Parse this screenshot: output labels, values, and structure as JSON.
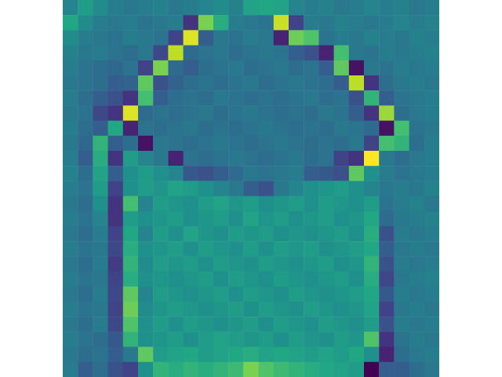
{
  "chart_data": {
    "type": "heatmap",
    "tick_labels": false,
    "cells": [
      [
        0.45,
        0.55,
        0.48,
        0.42,
        0.4,
        0.42,
        0.44,
        0.4,
        0.42,
        0.45,
        0.48,
        0.44,
        0.58,
        0.6,
        0.58,
        0.45,
        0.42,
        0.44,
        0.4,
        0.42,
        0.45,
        0.42,
        0.44,
        0.4,
        0.42
      ],
      [
        0.6,
        0.48,
        0.42,
        0.4,
        0.42,
        0.38,
        0.4,
        0.42,
        0.15,
        0.8,
        0.62,
        0.42,
        0.4,
        0.38,
        0.92,
        0.2,
        0.42,
        0.4,
        0.44,
        0.42,
        0.4,
        0.42,
        0.45,
        0.42,
        0.44
      ],
      [
        0.48,
        0.42,
        0.4,
        0.38,
        0.42,
        0.4,
        0.38,
        0.2,
        0.95,
        0.3,
        0.4,
        0.38,
        0.42,
        0.4,
        0.1,
        0.78,
        0.72,
        0.38,
        0.42,
        0.4,
        0.44,
        0.42,
        0.4,
        0.44,
        0.42
      ],
      [
        0.44,
        0.4,
        0.42,
        0.38,
        0.36,
        0.4,
        0.22,
        0.9,
        0.35,
        0.38,
        0.4,
        0.36,
        0.38,
        0.4,
        0.38,
        0.3,
        0.25,
        0.1,
        0.7,
        0.4,
        0.38,
        0.42,
        0.4,
        0.42,
        0.44
      ],
      [
        0.42,
        0.38,
        0.36,
        0.34,
        0.38,
        0.2,
        0.8,
        0.35,
        0.3,
        0.36,
        0.38,
        0.4,
        0.36,
        0.38,
        0.4,
        0.36,
        0.38,
        0.3,
        0.75,
        0.05,
        0.4,
        0.38,
        0.42,
        0.4,
        0.42
      ],
      [
        0.4,
        0.38,
        0.36,
        0.3,
        0.32,
        0.75,
        0.25,
        0.32,
        0.36,
        0.38,
        0.36,
        0.38,
        0.4,
        0.36,
        0.38,
        0.4,
        0.38,
        0.36,
        0.3,
        0.9,
        0.15,
        0.36,
        0.4,
        0.42,
        0.4
      ],
      [
        0.42,
        0.36,
        0.3,
        0.25,
        0.15,
        0.7,
        0.3,
        0.36,
        0.38,
        0.36,
        0.4,
        0.38,
        0.36,
        0.38,
        0.36,
        0.38,
        0.4,
        0.36,
        0.38,
        0.25,
        0.65,
        0.3,
        0.38,
        0.4,
        0.42
      ],
      [
        0.4,
        0.38,
        0.22,
        0.15,
        0.95,
        0.35,
        0.38,
        0.36,
        0.38,
        0.4,
        0.36,
        0.38,
        0.4,
        0.38,
        0.36,
        0.38,
        0.36,
        0.4,
        0.38,
        0.3,
        0.15,
        0.85,
        0.36,
        0.4,
        0.42
      ],
      [
        0.42,
        0.36,
        0.3,
        0.6,
        0.1,
        0.38,
        0.36,
        0.38,
        0.4,
        0.36,
        0.38,
        0.36,
        0.38,
        0.4,
        0.38,
        0.36,
        0.38,
        0.36,
        0.4,
        0.38,
        0.35,
        0.05,
        0.7,
        0.38,
        0.4
      ],
      [
        0.4,
        0.34,
        0.65,
        0.3,
        0.36,
        0.05,
        0.4,
        0.38,
        0.36,
        0.38,
        0.4,
        0.38,
        0.36,
        0.38,
        0.4,
        0.38,
        0.36,
        0.38,
        0.36,
        0.4,
        0.2,
        0.7,
        0.65,
        0.36,
        0.42
      ],
      [
        0.42,
        0.3,
        0.62,
        0.15,
        0.55,
        0.45,
        0.4,
        0.1,
        0.38,
        0.36,
        0.38,
        0.4,
        0.38,
        0.36,
        0.38,
        0.4,
        0.36,
        0.38,
        0.2,
        0.15,
        1.0,
        0.4,
        0.36,
        0.4,
        0.42
      ],
      [
        0.44,
        0.36,
        0.58,
        0.3,
        0.5,
        0.55,
        0.5,
        0.45,
        0.28,
        0.25,
        0.3,
        0.35,
        0.4,
        0.38,
        0.4,
        0.42,
        0.3,
        0.28,
        0.25,
        0.75,
        0.5,
        0.42,
        0.38,
        0.4,
        0.42
      ],
      [
        0.42,
        0.38,
        0.55,
        0.2,
        0.5,
        0.55,
        0.52,
        0.58,
        0.55,
        0.5,
        0.45,
        0.4,
        0.3,
        0.25,
        0.4,
        0.45,
        0.5,
        0.52,
        0.55,
        0.5,
        0.45,
        0.4,
        0.42,
        0.4,
        0.44
      ],
      [
        0.4,
        0.36,
        0.5,
        0.15,
        0.7,
        0.45,
        0.55,
        0.52,
        0.5,
        0.55,
        0.58,
        0.52,
        0.55,
        0.5,
        0.52,
        0.55,
        0.5,
        0.55,
        0.52,
        0.5,
        0.55,
        0.38,
        0.42,
        0.44,
        0.4
      ],
      [
        0.42,
        0.38,
        0.45,
        0.15,
        0.55,
        0.5,
        0.52,
        0.55,
        0.5,
        0.52,
        0.55,
        0.5,
        0.58,
        0.52,
        0.55,
        0.5,
        0.52,
        0.55,
        0.5,
        0.52,
        0.6,
        0.35,
        0.4,
        0.42,
        0.44
      ],
      [
        0.4,
        0.36,
        0.42,
        0.2,
        0.6,
        0.45,
        0.55,
        0.5,
        0.58,
        0.52,
        0.5,
        0.55,
        0.52,
        0.55,
        0.5,
        0.52,
        0.5,
        0.52,
        0.55,
        0.5,
        0.62,
        0.25,
        0.42,
        0.4,
        0.42
      ],
      [
        0.42,
        0.38,
        0.4,
        0.22,
        0.62,
        0.5,
        0.52,
        0.55,
        0.5,
        0.55,
        0.52,
        0.5,
        0.55,
        0.5,
        0.55,
        0.52,
        0.55,
        0.5,
        0.52,
        0.55,
        0.6,
        0.3,
        0.4,
        0.42,
        0.4
      ],
      [
        0.4,
        0.36,
        0.42,
        0.18,
        0.65,
        0.48,
        0.55,
        0.52,
        0.55,
        0.5,
        0.55,
        0.52,
        0.5,
        0.55,
        0.52,
        0.5,
        0.52,
        0.55,
        0.5,
        0.52,
        0.65,
        0.25,
        0.42,
        0.4,
        0.42
      ],
      [
        0.42,
        0.38,
        0.4,
        0.2,
        0.62,
        0.5,
        0.52,
        0.5,
        0.52,
        0.55,
        0.5,
        0.55,
        0.52,
        0.5,
        0.55,
        0.52,
        0.5,
        0.52,
        0.55,
        0.5,
        0.62,
        0.22,
        0.4,
        0.42,
        0.44
      ],
      [
        0.4,
        0.36,
        0.42,
        0.22,
        0.75,
        0.45,
        0.55,
        0.52,
        0.5,
        0.52,
        0.55,
        0.5,
        0.55,
        0.52,
        0.5,
        0.55,
        0.52,
        0.5,
        0.52,
        0.55,
        0.6,
        0.28,
        0.42,
        0.4,
        0.42
      ],
      [
        0.42,
        0.38,
        0.4,
        0.2,
        0.78,
        0.48,
        0.52,
        0.55,
        0.52,
        0.5,
        0.52,
        0.55,
        0.5,
        0.55,
        0.52,
        0.5,
        0.55,
        0.52,
        0.5,
        0.52,
        0.58,
        0.2,
        0.4,
        0.42,
        0.4
      ],
      [
        0.4,
        0.36,
        0.42,
        0.22,
        0.72,
        0.5,
        0.55,
        0.5,
        0.55,
        0.52,
        0.5,
        0.52,
        0.55,
        0.5,
        0.55,
        0.52,
        0.5,
        0.55,
        0.52,
        0.5,
        0.55,
        0.25,
        0.42,
        0.4,
        0.42
      ],
      [
        0.42,
        0.38,
        0.36,
        0.28,
        0.65,
        0.5,
        0.52,
        0.55,
        0.5,
        0.55,
        0.58,
        0.55,
        0.52,
        0.55,
        0.5,
        0.55,
        0.52,
        0.5,
        0.55,
        0.52,
        0.72,
        0.15,
        0.38,
        0.42,
        0.4
      ],
      [
        0.4,
        0.36,
        0.38,
        0.3,
        0.4,
        0.75,
        0.55,
        0.58,
        0.6,
        0.55,
        0.58,
        0.6,
        0.62,
        0.58,
        0.6,
        0.58,
        0.55,
        0.58,
        0.55,
        0.6,
        0.5,
        0.1,
        0.36,
        0.4,
        0.42
      ],
      [
        0.42,
        0.3,
        0.36,
        0.25,
        0.2,
        0.5,
        0.65,
        0.62,
        0.65,
        0.62,
        0.65,
        0.68,
        0.8,
        0.72,
        0.68,
        0.65,
        0.62,
        0.6,
        0.58,
        0.55,
        0.0,
        0.3,
        0.3,
        0.36,
        0.4
      ]
    ]
  }
}
